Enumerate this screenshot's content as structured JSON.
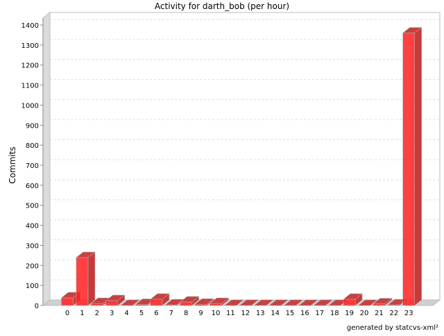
{
  "chart_data": {
    "type": "bar",
    "title": "Activity for darth_bob (per hour)",
    "xlabel": "",
    "ylabel": "Commits",
    "ylim": [
      0,
      1400
    ],
    "yticks": [
      0,
      100,
      200,
      300,
      400,
      500,
      600,
      700,
      800,
      900,
      1000,
      1100,
      1200,
      1300,
      1400
    ],
    "grid": true,
    "legend": "none",
    "style": "3d",
    "bar_color": "#ff2020",
    "categories": [
      "0",
      "1",
      "2",
      "3",
      "4",
      "5",
      "6",
      "7",
      "8",
      "9",
      "10",
      "11",
      "12",
      "13",
      "14",
      "15",
      "16",
      "17",
      "18",
      "19",
      "20",
      "21",
      "22",
      "23"
    ],
    "values": [
      38,
      239,
      10,
      24,
      0,
      5,
      31,
      3,
      17,
      6,
      10,
      0,
      0,
      0,
      0,
      0,
      0,
      0,
      0,
      31,
      0,
      8,
      3,
      1360
    ]
  },
  "footer": "generated by statcvs-xml²"
}
